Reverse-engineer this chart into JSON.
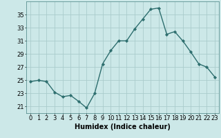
{
  "x": [
    0,
    1,
    2,
    3,
    4,
    5,
    6,
    7,
    8,
    9,
    10,
    11,
    12,
    13,
    14,
    15,
    16,
    17,
    18,
    19,
    20,
    21,
    22,
    23
  ],
  "y": [
    24.8,
    25.0,
    24.8,
    23.2,
    22.5,
    22.7,
    21.8,
    20.8,
    23.0,
    27.5,
    29.5,
    31.0,
    31.0,
    32.8,
    34.3,
    35.8,
    36.0,
    32.0,
    32.4,
    31.0,
    29.3,
    27.5,
    27.0,
    25.5
  ],
  "line_color": "#2d6e6e",
  "marker": "D",
  "marker_size": 2.2,
  "bg_color": "#cce8e8",
  "grid_color": "#aacccc",
  "xlabel": "Humidex (Indice chaleur)",
  "ylim": [
    20.0,
    37.0
  ],
  "xlim": [
    -0.5,
    23.5
  ],
  "yticks": [
    21,
    23,
    25,
    27,
    29,
    31,
    33,
    35
  ],
  "xticks": [
    0,
    1,
    2,
    3,
    4,
    5,
    6,
    7,
    8,
    9,
    10,
    11,
    12,
    13,
    14,
    15,
    16,
    17,
    18,
    19,
    20,
    21,
    22,
    23
  ],
  "xlabel_fontsize": 7,
  "tick_fontsize": 6,
  "line_width": 1.0,
  "marker_color": "#2d6e6e",
  "spine_color": "#5a9090"
}
